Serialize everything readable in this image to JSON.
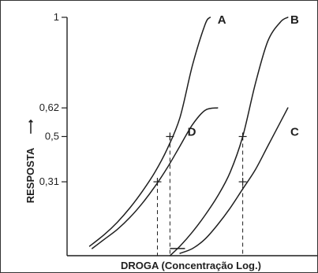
{
  "chart_data": {
    "type": "line",
    "title": "",
    "xlabel": "DROGA (Concentração Log.)",
    "ylabel": "RESPOSTA",
    "ylabel_arrow": "⟶",
    "ylim": [
      0,
      1
    ],
    "y_ticks": [
      {
        "value": 1,
        "label": "1"
      },
      {
        "value": 0.62,
        "label": "0,62"
      },
      {
        "value": 0.5,
        "label": "0,5"
      },
      {
        "value": 0.31,
        "label": "0,31"
      }
    ],
    "grid": false,
    "series": [
      {
        "name": "A",
        "x": [
          0.09,
          0.15,
          0.2,
          0.25,
          0.3,
          0.35,
          0.4,
          0.45,
          0.5,
          0.55,
          0.57
        ],
        "y": [
          0.04,
          0.09,
          0.14,
          0.2,
          0.27,
          0.35,
          0.45,
          0.58,
          0.8,
          0.97,
          1.0
        ]
      },
      {
        "name": "D",
        "x": [
          0.1,
          0.15,
          0.2,
          0.25,
          0.3,
          0.35,
          0.4,
          0.45,
          0.5,
          0.55,
          0.6
        ],
        "y": [
          0.03,
          0.07,
          0.11,
          0.16,
          0.22,
          0.29,
          0.37,
          0.46,
          0.55,
          0.61,
          0.62
        ]
      },
      {
        "name": "B",
        "x": [
          0.41,
          0.45,
          0.5,
          0.55,
          0.6,
          0.65,
          0.7,
          0.75,
          0.8,
          0.85,
          0.88
        ],
        "y": [
          0.0,
          0.04,
          0.1,
          0.17,
          0.25,
          0.35,
          0.5,
          0.72,
          0.9,
          0.98,
          1.0
        ]
      },
      {
        "name": "C",
        "x": [
          0.45,
          0.5,
          0.55,
          0.6,
          0.65,
          0.7,
          0.75,
          0.8,
          0.85,
          0.88
        ],
        "y": [
          0.01,
          0.03,
          0.07,
          0.13,
          0.2,
          0.28,
          0.36,
          0.46,
          0.56,
          0.62
        ]
      }
    ],
    "markers": [
      {
        "series": "A",
        "x": 0.41,
        "y": 0.5
      },
      {
        "series": "D",
        "x": 0.36,
        "y": 0.31
      },
      {
        "series": "B",
        "x": 0.7,
        "y": 0.5
      },
      {
        "series": "C",
        "x": 0.7,
        "y": 0.31
      }
    ],
    "dashed_drop_lines": [
      {
        "x": 0.36,
        "from_y": 0.31
      },
      {
        "x": 0.41,
        "from_y": 0.5
      },
      {
        "x": 0.7,
        "from_y": 0.5
      }
    ],
    "baseline_segment": {
      "x_from": 0.41,
      "x_to": 0.47,
      "y": 0.03
    },
    "curve_labels": [
      {
        "text": "A",
        "x": 0.6,
        "y": 0.99
      },
      {
        "text": "B",
        "x": 0.89,
        "y": 0.99
      },
      {
        "text": "D",
        "x": 0.48,
        "y": 0.52
      },
      {
        "text": "C",
        "x": 0.89,
        "y": 0.52
      }
    ]
  }
}
